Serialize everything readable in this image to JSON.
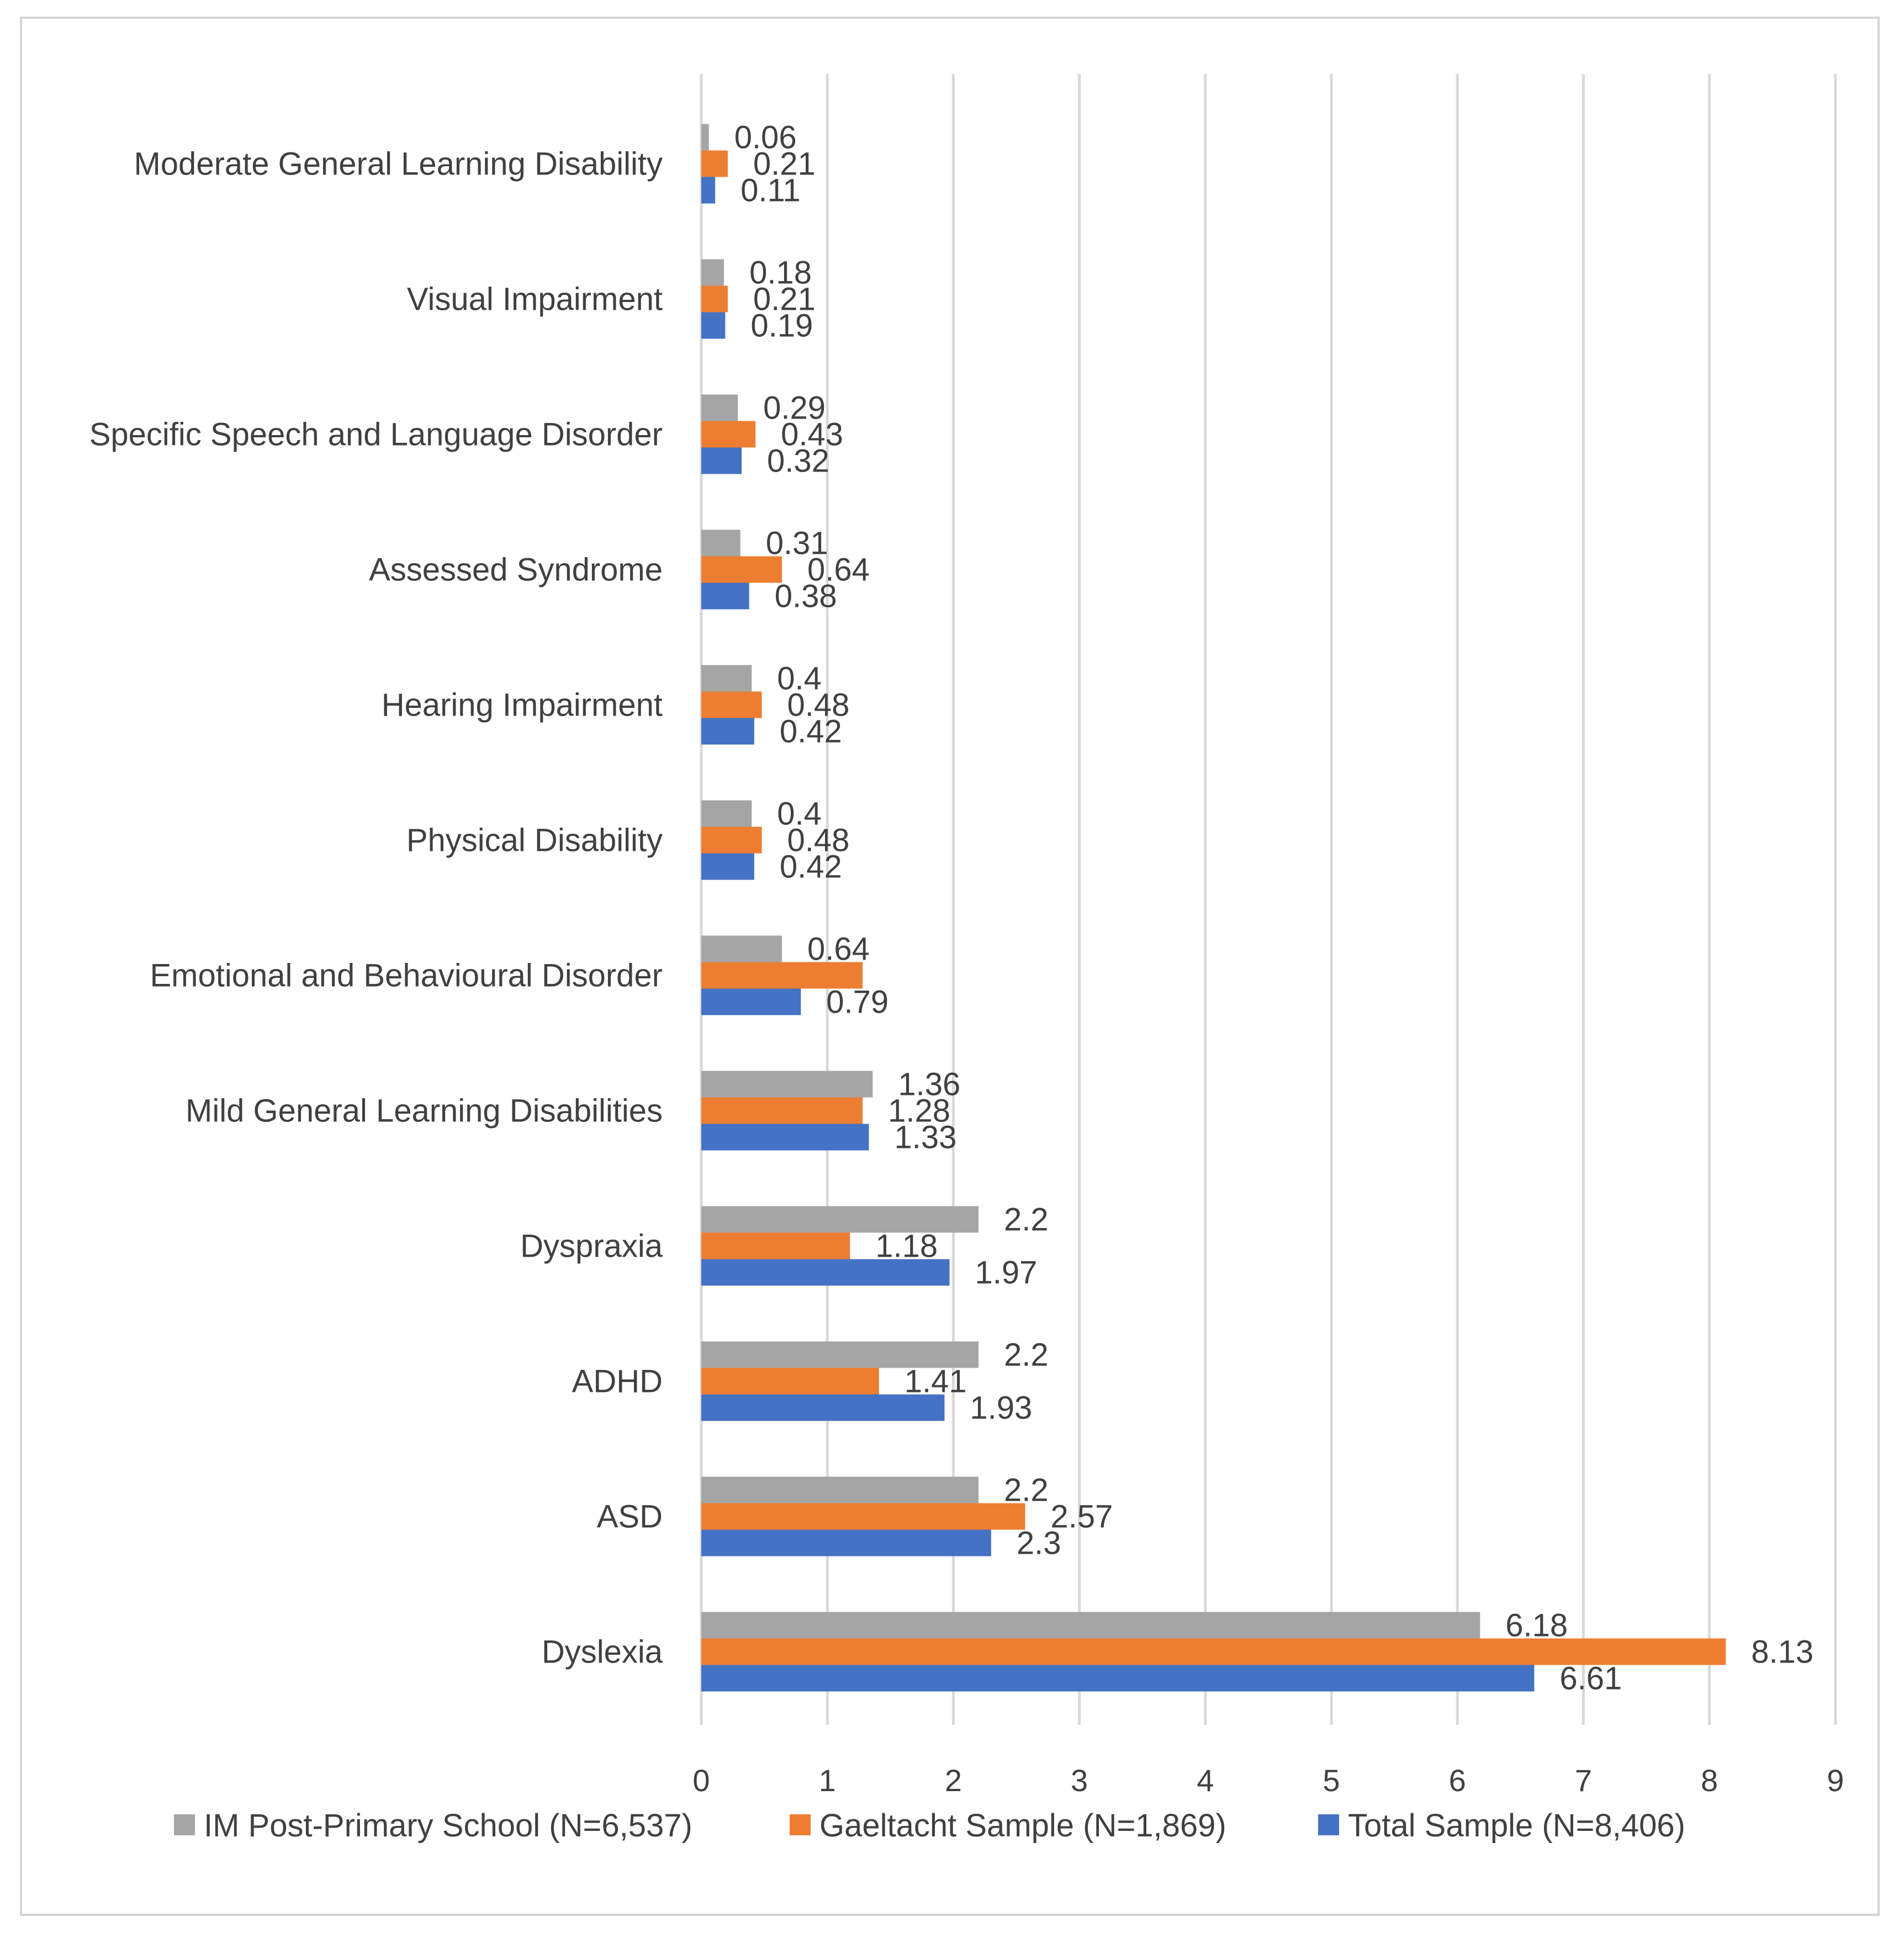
{
  "chart_data": {
    "type": "bar",
    "orientation": "horizontal",
    "title": "",
    "xlabel": "",
    "ylabel": "",
    "xlim": [
      0,
      9
    ],
    "x_ticks": [
      "0",
      "1",
      "2",
      "3",
      "4",
      "5",
      "6",
      "7",
      "8",
      "9"
    ],
    "grid": true,
    "legend_position": "bottom",
    "categories": [
      "Moderate General Learning Disability",
      "Visual Impairment",
      "Specific Speech and Language Disorder",
      "Assessed Syndrome",
      "Hearing Impairment",
      "Physical Disability",
      "Emotional and Behavioural Disorder",
      "Mild General Learning Disabilities",
      "Dyspraxia",
      "ADHD",
      "ASD",
      "Dyslexia"
    ],
    "series": [
      {
        "name": "IM Post-Primary School (N=6,537)",
        "color": "#a5a5a5",
        "values": [
          0.06,
          0.18,
          0.29,
          0.31,
          0.4,
          0.4,
          0.64,
          1.36,
          2.2,
          2.2,
          2.2,
          6.18
        ],
        "labels": [
          "0.06",
          "0.18",
          "0.29",
          "0.31",
          "0.4",
          "0.4",
          "0.64",
          "1.36",
          "2.2",
          "2.2",
          "2.2",
          "6.18"
        ]
      },
      {
        "name": "Gaeltacht Sample (N=1,869)",
        "color": "#ed7d31",
        "values": [
          0.21,
          0.21,
          0.43,
          0.64,
          0.48,
          0.48,
          1.28,
          1.28,
          1.18,
          1.41,
          2.57,
          8.13
        ],
        "labels": [
          "0.21",
          "0.21",
          "0.43",
          "0.64",
          "0.48",
          "0.48",
          "",
          "1.28",
          "1.18",
          "1.41",
          "2.57",
          "8.13"
        ]
      },
      {
        "name": "Total Sample (N=8,406)",
        "color": "#4472c4",
        "values": [
          0.11,
          0.19,
          0.32,
          0.38,
          0.42,
          0.42,
          0.79,
          1.33,
          1.97,
          1.93,
          2.3,
          6.61
        ],
        "labels": [
          "0.11",
          "0.19",
          "0.32",
          "0.38",
          "0.42",
          "0.42",
          "0.79",
          "1.33",
          "1.97",
          "1.93",
          "2.3",
          "6.61"
        ]
      }
    ]
  }
}
